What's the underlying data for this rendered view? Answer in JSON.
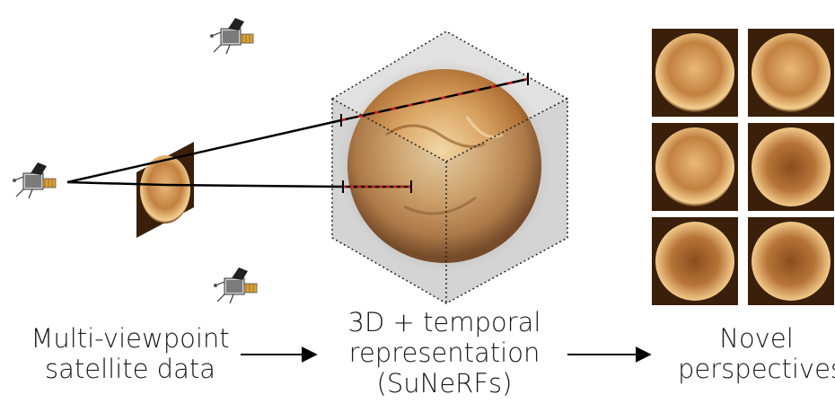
{
  "labels": {
    "left": [
      "Multi-viewpoint",
      "satellite data"
    ],
    "middle": [
      "3D + temporal",
      "representation",
      "(SuNeRFs)"
    ],
    "right": [
      "Novel",
      "perspectives"
    ]
  },
  "icons": [
    "satellite-icon",
    "sun-image-icon",
    "arrow-right-icon"
  ],
  "colors": {
    "sun_light": "#f3d8a8",
    "sun_mid": "#c98d4a",
    "sun_dark": "#5a2e0c",
    "ray": "#000000",
    "sample_points": "#d01818",
    "cube_edge": "#222222"
  }
}
